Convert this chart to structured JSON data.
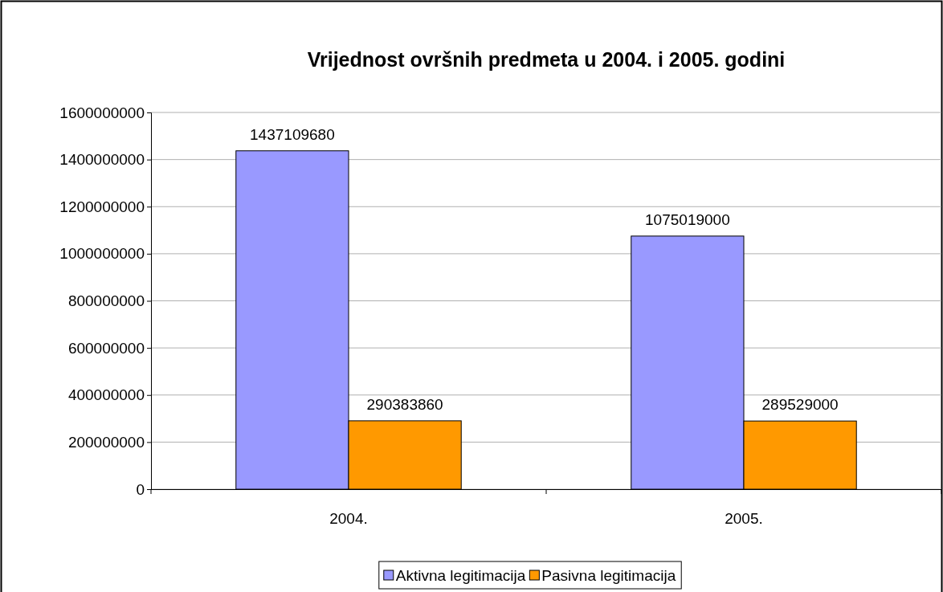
{
  "chart_data": {
    "type": "bar",
    "title": "Vrijednost ovršnih predmeta u 2004. i 2005. godini",
    "categories": [
      "2004.",
      "2005."
    ],
    "series": [
      {
        "name": "Aktivna legitimacija",
        "color": "#9999ff",
        "values": [
          1437109680,
          1075019000
        ]
      },
      {
        "name": "Pasivna legitimacija",
        "color": "#ff9900",
        "values": [
          290383860,
          289529000
        ]
      }
    ],
    "ylim": [
      0,
      1600000000
    ],
    "yticks": [
      0,
      200000000,
      400000000,
      600000000,
      800000000,
      1000000000,
      1200000000,
      1400000000,
      1600000000
    ],
    "grid": "y",
    "legend": "bottom",
    "data_labels": true
  }
}
